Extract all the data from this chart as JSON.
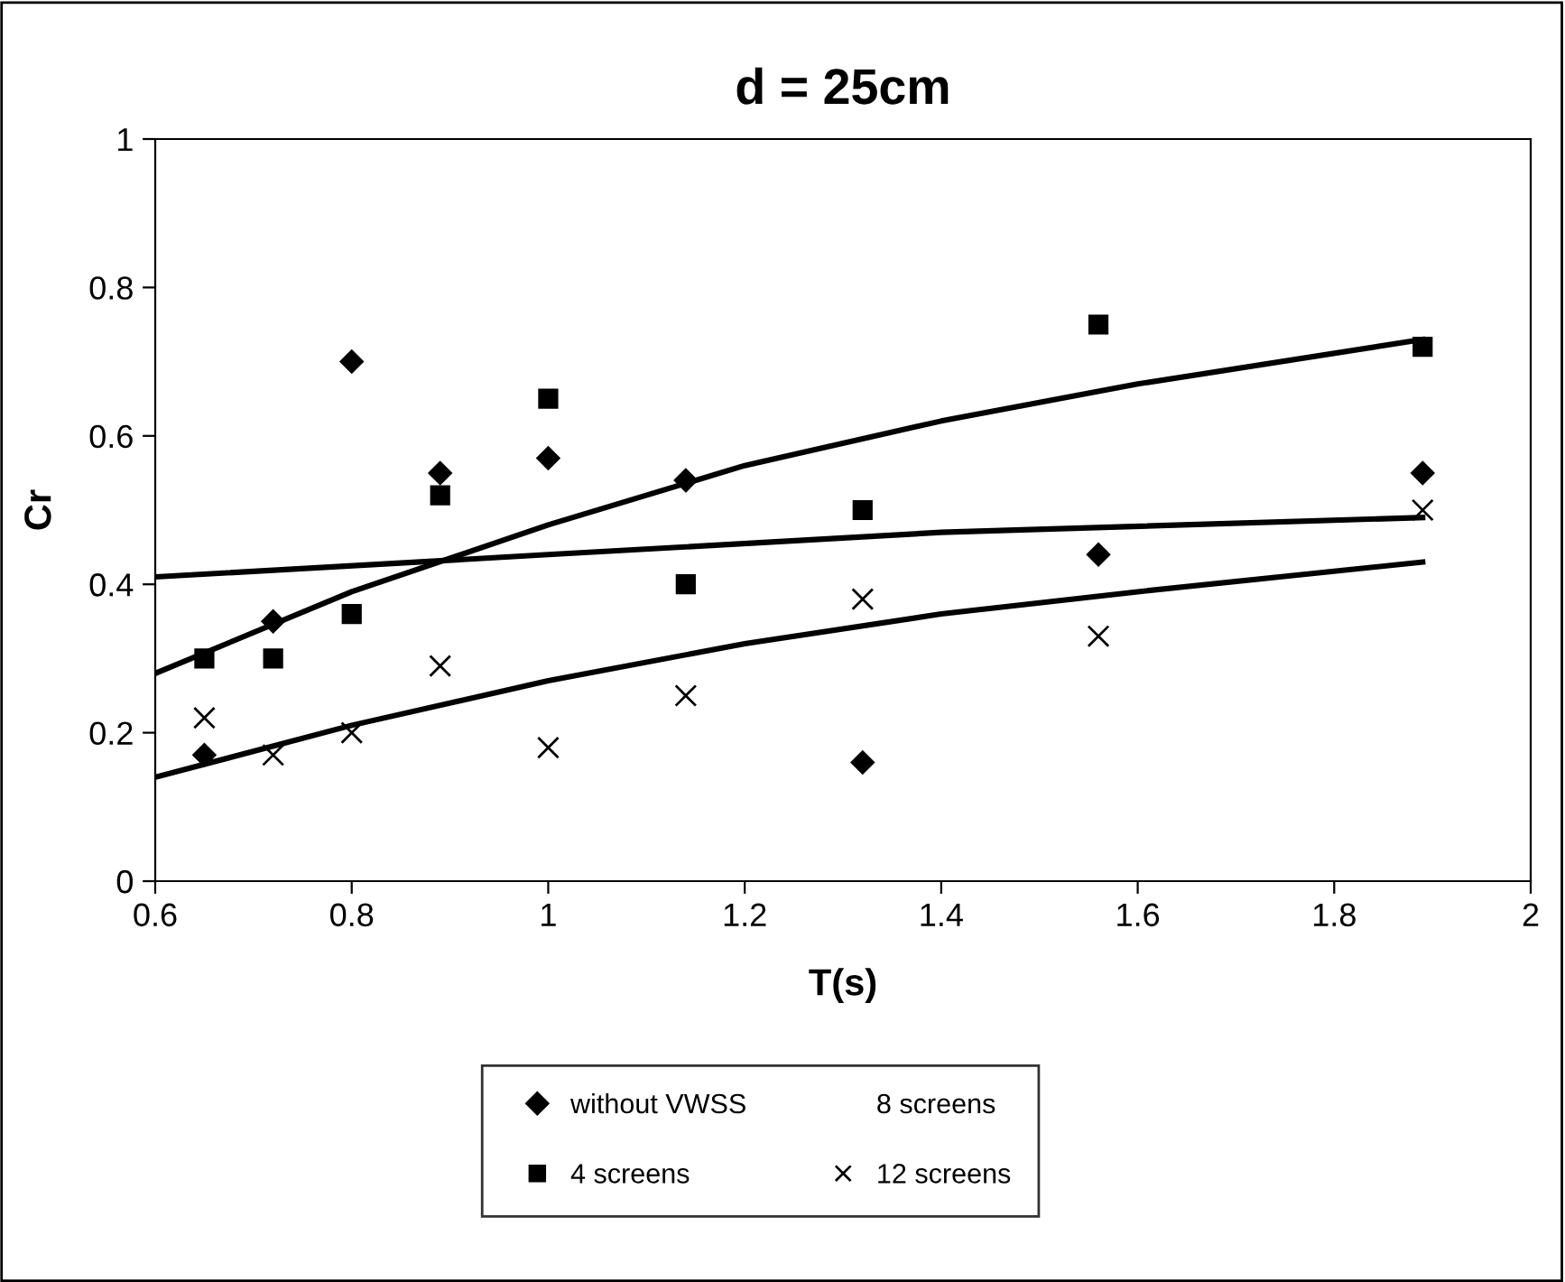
{
  "chart_data": {
    "type": "scatter",
    "title": "d = 25cm",
    "xlabel": "T(s)",
    "ylabel": "Cr",
    "x": [
      0.65,
      0.72,
      0.8,
      0.89,
      1.0,
      1.14,
      1.32,
      1.56,
      1.89
    ],
    "series": [
      {
        "name": "without VWSS",
        "color": "#000000",
        "marker": "diamond",
        "values": [
          0.17,
          0.35,
          0.7,
          0.55,
          0.57,
          0.54,
          0.16,
          0.44,
          0.55
        ]
      },
      {
        "name": "4 screens",
        "color": "#000000",
        "marker": "square",
        "values": [
          0.3,
          0.3,
          0.36,
          0.52,
          0.65,
          0.4,
          0.5,
          0.75,
          0.72
        ]
      },
      {
        "name": "8 screens",
        "color": "#000000",
        "marker": "none",
        "values": [
          null,
          null,
          null,
          null,
          null,
          null,
          null,
          null,
          null
        ]
      },
      {
        "name": "12 screens",
        "color": "#000000",
        "marker": "cross",
        "values": [
          0.22,
          0.17,
          0.2,
          0.29,
          0.18,
          0.25,
          0.38,
          0.33,
          0.5
        ]
      },
      {
        "type": "line",
        "color": "#000000",
        "x": [
          0.6,
          0.8,
          1.0,
          1.2,
          1.4,
          1.6,
          1.89
        ],
        "values": [
          0.28,
          0.39,
          0.48,
          0.56,
          0.62,
          0.67,
          0.73
        ]
      },
      {
        "type": "line",
        "color": "#000000",
        "x": [
          0.6,
          1.0,
          1.4,
          1.89
        ],
        "values": [
          0.41,
          0.44,
          0.47,
          0.49
        ]
      },
      {
        "type": "line",
        "color": "#000000",
        "x": [
          0.6,
          0.8,
          1.0,
          1.2,
          1.4,
          1.6,
          1.89
        ],
        "values": [
          0.14,
          0.21,
          0.27,
          0.32,
          0.36,
          0.39,
          0.43
        ]
      }
    ],
    "xlim": [
      0.6,
      2
    ],
    "xticks": [
      {
        "value": 0.6,
        "label": "0.6"
      },
      {
        "value": 0.8,
        "label": "0.8"
      },
      1,
      {
        "value": 1.2,
        "label": "1.2"
      },
      {
        "value": 1.4,
        "label": "1.4"
      },
      {
        "value": 1.6,
        "label": "1.6"
      },
      {
        "value": 1.8,
        "label": "1.8"
      },
      2
    ],
    "ylim": [
      0,
      1
    ],
    "yticks": [
      0,
      {
        "value": 0.2,
        "label": "0.2"
      },
      {
        "value": 0.4,
        "label": "0.4"
      },
      {
        "value": 0.6,
        "label": "0.6"
      },
      {
        "value": 0.8,
        "label": "0.8"
      },
      1
    ],
    "grid": false,
    "legend": "bottom"
  }
}
